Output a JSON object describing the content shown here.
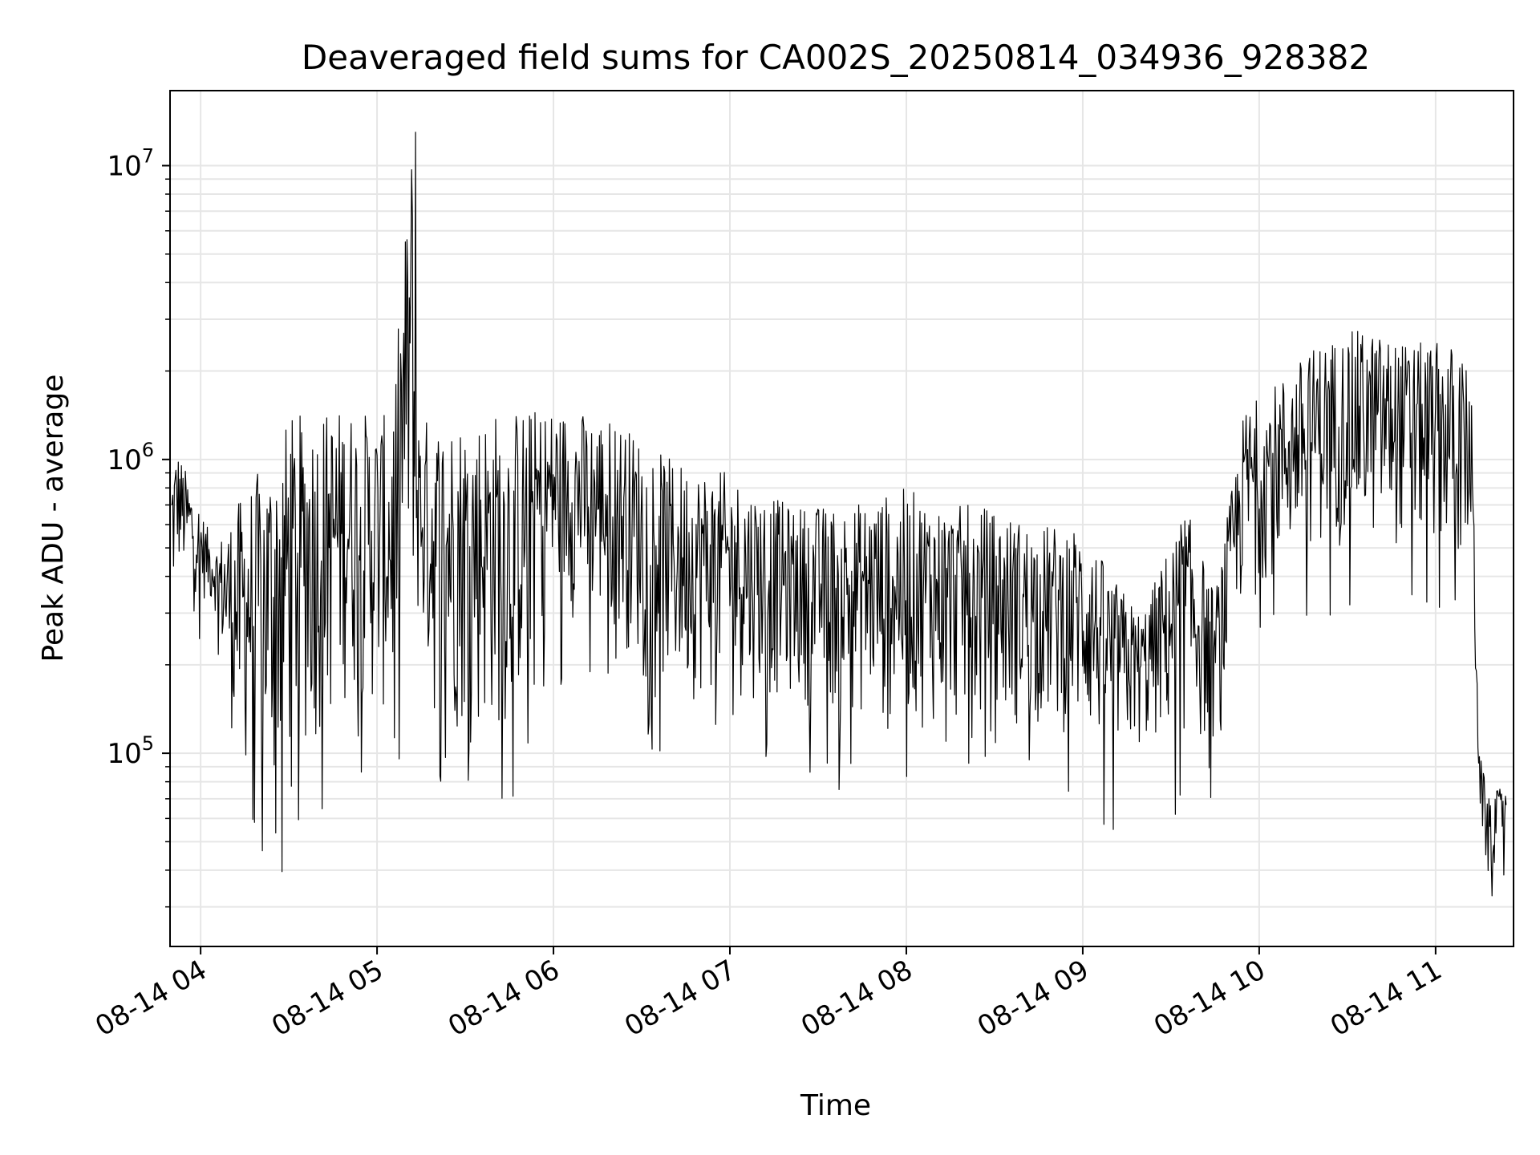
{
  "chart_data": {
    "type": "line",
    "title": "Deaveraged field sums for CA002S_20250814_034936_928382",
    "xlabel": "Time",
    "ylabel": "Peak ADU - average",
    "yscale": "log",
    "ylim": [
      22000,
      18000000
    ],
    "xlim": [
      "2025-08-14 03:49:36",
      "2025-08-14 11:26:30"
    ],
    "x_tick_labels": [
      "08-14 04",
      "08-14 05",
      "08-14 06",
      "08-14 07",
      "08-14 08",
      "08-14 09",
      "08-14 10",
      "08-14 11"
    ],
    "y_tick_labels": [
      {
        "base": "10",
        "exp": "5",
        "value": 100000
      },
      {
        "base": "10",
        "exp": "6",
        "value": 1000000
      },
      {
        "base": "10",
        "exp": "7",
        "value": 10000000
      }
    ],
    "grid": true,
    "line_color": "#000000",
    "series": [
      {
        "x": [
          "2025-08-14 03:50",
          "2025-08-14 03:52",
          "2025-08-14 04:05",
          "2025-08-14 04:12",
          "2025-08-14 04:25",
          "2025-08-14 04:30",
          "2025-08-14 04:45",
          "2025-08-14 04:50",
          "2025-08-14 05:05",
          "2025-08-14 05:12",
          "2025-08-14 05:13",
          "2025-08-14 05:14",
          "2025-08-14 05:20",
          "2025-08-14 05:45",
          "2025-08-14 06:00",
          "2025-08-14 06:20",
          "2025-08-14 06:40",
          "2025-08-14 07:00",
          "2025-08-14 07:20",
          "2025-08-14 07:40",
          "2025-08-14 08:00",
          "2025-08-14 08:15",
          "2025-08-14 08:25",
          "2025-08-14 08:45",
          "2025-08-14 09:00",
          "2025-08-14 09:10",
          "2025-08-14 09:20",
          "2025-08-14 09:35",
          "2025-08-14 09:45",
          "2025-08-14 09:55",
          "2025-08-14 10:05",
          "2025-08-14 10:20",
          "2025-08-14 10:35",
          "2025-08-14 10:50",
          "2025-08-14 11:05",
          "2025-08-14 11:12",
          "2025-08-14 11:15",
          "2025-08-14 11:18",
          "2025-08-14 11:24"
        ],
        "y_low": [
          250000,
          400000,
          300000,
          90000,
          60000,
          80000,
          120000,
          150000,
          120000,
          300000,
          300000,
          250000,
          110000,
          110000,
          300000,
          250000,
          150000,
          150000,
          150000,
          130000,
          120000,
          120000,
          110000,
          120000,
          110000,
          90000,
          100000,
          110000,
          100000,
          350000,
          400000,
          500000,
          500000,
          500000,
          450000,
          400000,
          60000,
          35000,
          55000
        ],
        "y_high": [
          1000000,
          1100000,
          500000,
          700000,
          1100000,
          1400000,
          1500000,
          1500000,
          1400000,
          13000000,
          1500000,
          1400000,
          1400000,
          1500000,
          1500000,
          1400000,
          1000000,
          900000,
          700000,
          700000,
          800000,
          700000,
          700000,
          600000,
          600000,
          400000,
          300000,
          700000,
          350000,
          1500000,
          1800000,
          2500000,
          2800000,
          2500000,
          2500000,
          2000000,
          100000,
          70000,
          80000
        ],
        "count": 1700
      }
    ]
  }
}
